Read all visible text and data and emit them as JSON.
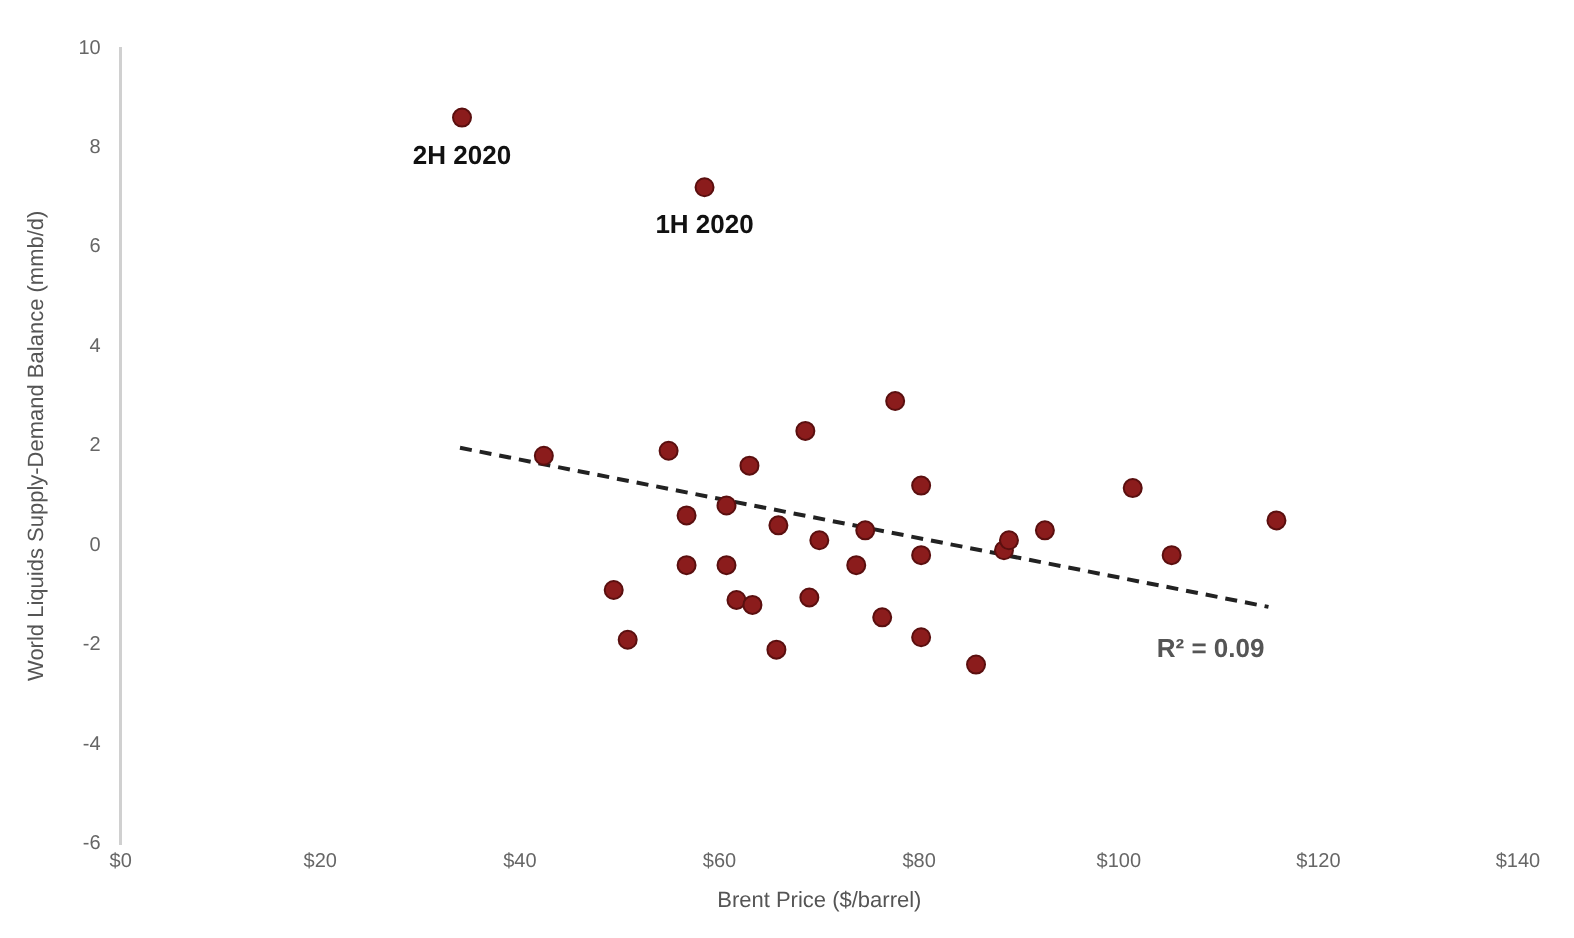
{
  "chart_data": {
    "type": "scatter",
    "xlabel": "Brent Price ($/barrel)",
    "ylabel": "World Liquids Supply-Demand Balance (mmb/d)",
    "xlim": [
      0,
      140
    ],
    "xticks": [
      {
        "value": 0,
        "label": "$0"
      },
      {
        "value": 20,
        "label": "$20"
      },
      {
        "value": 40,
        "label": "$40"
      },
      {
        "value": 60,
        "label": "$60"
      },
      {
        "value": 80,
        "label": "$80"
      },
      {
        "value": 100,
        "label": "$100"
      },
      {
        "value": 120,
        "label": "$120"
      },
      {
        "value": 140,
        "label": "$140"
      }
    ],
    "ylim": [
      -6,
      10
    ],
    "yticks": [
      -6,
      -4,
      -2,
      0,
      2,
      4,
      6,
      8,
      10
    ],
    "grid": false,
    "legend": false,
    "marker": "circle",
    "series": [
      {
        "color": "#8b1c1c",
        "x": [
          34.2,
          58.5,
          42.4,
          54.9,
          63.0,
          68.6,
          77.6,
          80.2,
          56.7,
          60.7,
          65.9,
          70.0,
          74.6,
          80.2,
          73.7,
          56.7,
          60.7,
          49.4,
          61.7,
          63.3,
          69.0,
          50.8,
          65.7,
          76.3,
          80.2,
          85.7,
          88.5,
          89.0,
          92.6,
          101.4,
          105.3,
          115.8
        ],
        "values": [
          8.6,
          7.2,
          1.8,
          1.9,
          1.6,
          2.3,
          2.9,
          1.2,
          0.6,
          0.8,
          0.4,
          0.1,
          0.3,
          -0.2,
          -0.4,
          -0.4,
          -0.4,
          -0.9,
          -1.1,
          -1.2,
          -1.05,
          -1.9,
          -2.1,
          -1.45,
          -1.85,
          -2.4,
          -0.1,
          0.1,
          0.3,
          1.15,
          -0.2,
          0.5
        ]
      },
      {
        "type": "line",
        "color": "#222222",
        "marker": "none",
        "line_style": "dashed",
        "x": [
          34,
          115
        ],
        "values": [
          1.96,
          -1.24
        ]
      }
    ],
    "annotations": [
      {
        "text": "2H 2020",
        "x": 34.2,
        "y": 8.6
      },
      {
        "text": "1H 2020",
        "x": 58.5,
        "y": 7.2
      },
      "R² = 0.09"
    ]
  }
}
